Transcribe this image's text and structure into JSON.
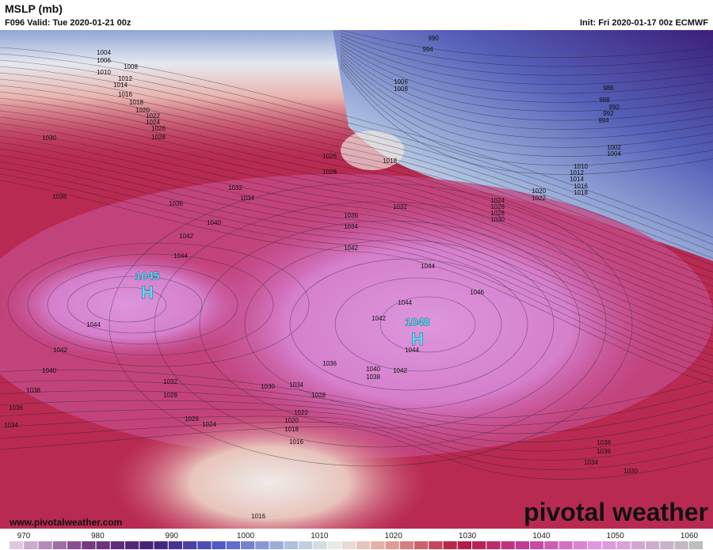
{
  "header": {
    "title": "MSLP (mb)",
    "valid": "F096 Valid: Tue 2020-01-21 00z",
    "init": "Init: Fri 2020-01-17 00z ECMWF"
  },
  "highs": [
    {
      "value": "1045",
      "symbol": "H"
    },
    {
      "value": "1048",
      "symbol": "H"
    }
  ],
  "isobar_labels": [
    "1004",
    "1006",
    "1008",
    "1010",
    "1012",
    "1014",
    "1016",
    "1018",
    "1020",
    "1022",
    "1024",
    "1026",
    "1028",
    "1030",
    "1038",
    "1036",
    "1042",
    "1044",
    "1044",
    "1042",
    "1040",
    "1038",
    "1036",
    "1034",
    "1032",
    "1028",
    "1026",
    "1024",
    "1030",
    "1034",
    "1028",
    "1022",
    "1020",
    "1018",
    "1016",
    "1016",
    "1036",
    "1040",
    "1038",
    "1042",
    "1044",
    "1042",
    "1044",
    "1044",
    "1046",
    "1042",
    "1036",
    "1034",
    "1032",
    "1018",
    "1026",
    "1028",
    "1006",
    "1008",
    "990",
    "994",
    "986",
    "988",
    "990",
    "992",
    "994",
    "1002",
    "1004",
    "1010",
    "1012",
    "1014",
    "1016",
    "1018",
    "1020",
    "1022",
    "1024",
    "1026",
    "1028",
    "1030",
    "1032",
    "1034",
    "1040",
    "1038",
    "1036",
    "1034",
    "1030"
  ],
  "colorbar": {
    "ticks": [
      970,
      980,
      990,
      1000,
      1010,
      1020,
      1030,
      1040,
      1050,
      1060
    ]
  },
  "footer": {
    "url": "www.pivotalweather.com",
    "logo": "pivotal weather"
  }
}
